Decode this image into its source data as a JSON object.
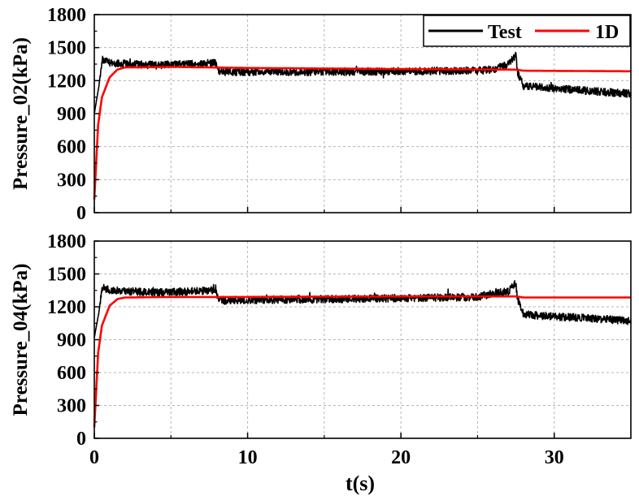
{
  "chart_data": [
    {
      "type": "line",
      "ylabel": "Pressure_02(kPa)",
      "xlabel": "",
      "xlim": [
        0,
        35
      ],
      "ylim": [
        0,
        1800
      ],
      "xticks": [
        0,
        10,
        20,
        30
      ],
      "yticks": [
        0,
        300,
        600,
        900,
        1200,
        1500,
        1800
      ],
      "grid": true,
      "legend": {
        "position": "top-right",
        "entries": [
          "Test",
          "1D"
        ]
      },
      "series": [
        {
          "name": "Test",
          "color": "#000000",
          "noise": 35,
          "points": [
            [
              0,
              900
            ],
            [
              0.3,
              1150
            ],
            [
              0.5,
              1390
            ],
            [
              1,
              1360
            ],
            [
              4,
              1340
            ],
            [
              7.9,
              1360
            ],
            [
              8.1,
              1280
            ],
            [
              15,
              1280
            ],
            [
              25,
              1290
            ],
            [
              26,
              1300
            ],
            [
              27,
              1350
            ],
            [
              27.5,
              1430
            ],
            [
              27.6,
              1280
            ],
            [
              28,
              1150
            ],
            [
              30,
              1130
            ],
            [
              32,
              1110
            ],
            [
              35,
              1080
            ]
          ]
        },
        {
          "name": "1D",
          "color": "#ff0000",
          "noise": 0,
          "points": [
            [
              0,
              120
            ],
            [
              0.25,
              800
            ],
            [
              0.5,
              1050
            ],
            [
              1,
              1230
            ],
            [
              1.5,
              1300
            ],
            [
              2,
              1320
            ],
            [
              5,
              1325
            ],
            [
              10,
              1315
            ],
            [
              20,
              1305
            ],
            [
              27.5,
              1300
            ],
            [
              28,
              1290
            ],
            [
              35,
              1285
            ]
          ]
        }
      ]
    },
    {
      "type": "line",
      "ylabel": "Pressure_04(kPa)",
      "xlabel": "t(s)",
      "xlim": [
        0,
        35
      ],
      "ylim": [
        0,
        1800
      ],
      "xticks": [
        0,
        10,
        20,
        30
      ],
      "yticks": [
        0,
        300,
        600,
        900,
        1200,
        1500,
        1800
      ],
      "grid": true,
      "series": [
        {
          "name": "Test",
          "color": "#000000",
          "noise": 35,
          "points": [
            [
              0,
              920
            ],
            [
              0.3,
              1150
            ],
            [
              0.5,
              1380
            ],
            [
              1,
              1350
            ],
            [
              4,
              1330
            ],
            [
              7.9,
              1350
            ],
            [
              8.1,
              1260
            ],
            [
              15,
              1270
            ],
            [
              25,
              1290
            ],
            [
              26,
              1320
            ],
            [
              27,
              1340
            ],
            [
              27.5,
              1420
            ],
            [
              27.6,
              1270
            ],
            [
              28,
              1130
            ],
            [
              30,
              1110
            ],
            [
              32,
              1100
            ],
            [
              35,
              1070
            ]
          ]
        },
        {
          "name": "1D",
          "color": "#ff0000",
          "noise": 0,
          "points": [
            [
              0,
              100
            ],
            [
              0.25,
              780
            ],
            [
              0.5,
              1030
            ],
            [
              1,
              1210
            ],
            [
              1.5,
              1270
            ],
            [
              2,
              1285
            ],
            [
              5,
              1290
            ],
            [
              10,
              1290
            ],
            [
              20,
              1295
            ],
            [
              27.5,
              1295
            ],
            [
              28,
              1285
            ],
            [
              35,
              1285
            ]
          ]
        }
      ]
    }
  ]
}
